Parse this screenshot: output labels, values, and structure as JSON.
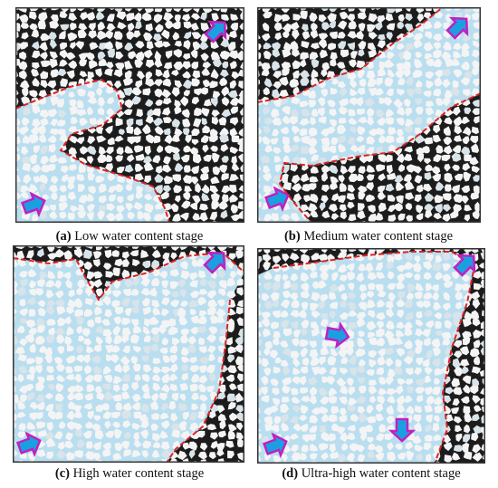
{
  "panels": [
    {
      "label": "(a)",
      "caption": "Low water content stage"
    },
    {
      "label": "(b)",
      "caption": "Medium water content stage"
    },
    {
      "label": "(c)",
      "caption": "High water content stage"
    },
    {
      "label": "(d)",
      "caption": "Ultra-high water content stage"
    }
  ]
}
